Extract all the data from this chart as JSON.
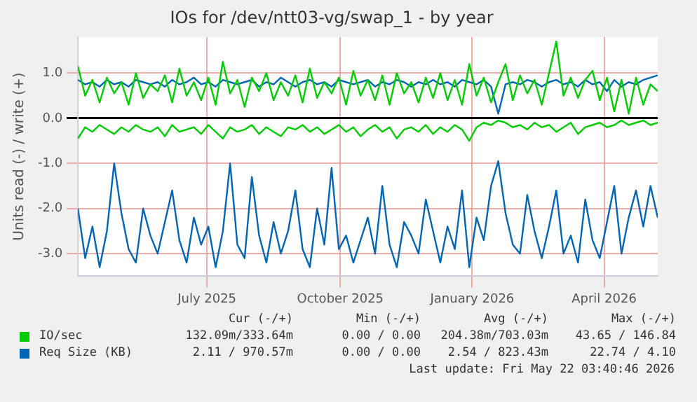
{
  "chart_data": {
    "type": "line",
    "title": "IOs for /dev/ntt03-vg/swap_1 - by year",
    "ylabel": "Units read (-) / write (+)",
    "x": [
      "2025-04-17",
      "2025-04-22",
      "2025-04-27",
      "2025-05-02",
      "2025-05-07",
      "2025-05-12",
      "2025-05-17",
      "2025-05-22",
      "2025-05-27",
      "2025-06-01",
      "2025-06-06",
      "2025-06-11",
      "2025-06-16",
      "2025-06-21",
      "2025-06-26",
      "2025-07-01",
      "2025-07-06",
      "2025-07-11",
      "2025-07-16",
      "2025-07-21",
      "2025-07-26",
      "2025-07-31",
      "2025-08-05",
      "2025-08-10",
      "2025-08-15",
      "2025-08-20",
      "2025-08-25",
      "2025-08-30",
      "2025-09-04",
      "2025-09-09",
      "2025-09-14",
      "2025-09-19",
      "2025-09-24",
      "2025-09-29",
      "2025-10-04",
      "2025-10-09",
      "2025-10-14",
      "2025-10-19",
      "2025-10-24",
      "2025-10-29",
      "2025-11-03",
      "2025-11-08",
      "2025-11-13",
      "2025-11-18",
      "2025-11-23",
      "2025-11-28",
      "2025-12-03",
      "2025-12-08",
      "2025-12-13",
      "2025-12-18",
      "2025-12-23",
      "2025-12-28",
      "2026-01-02",
      "2026-01-07",
      "2026-01-12",
      "2026-01-17",
      "2026-01-22",
      "2026-01-27",
      "2026-02-01",
      "2026-02-06",
      "2026-02-11",
      "2026-02-16",
      "2026-02-21",
      "2026-02-26",
      "2026-03-03",
      "2026-03-08",
      "2026-03-13",
      "2026-03-18",
      "2026-03-23",
      "2026-03-28",
      "2026-04-02",
      "2026-04-07",
      "2026-04-12",
      "2026-04-17",
      "2026-04-22",
      "2026-04-27",
      "2026-05-02",
      "2026-05-07",
      "2026-05-12",
      "2026-05-17",
      "2026-05-22"
    ],
    "series": [
      {
        "color": "#00cc00",
        "values": [
          -0.45,
          -0.2,
          -0.3,
          -0.15,
          -0.25,
          -0.35,
          -0.2,
          -0.3,
          -0.15,
          -0.25,
          -0.3,
          -0.2,
          -0.4,
          -0.15,
          -0.3,
          -0.25,
          -0.2,
          -0.35,
          -0.15,
          -0.3,
          -0.45,
          -0.2,
          -0.3,
          -0.25,
          -0.15,
          -0.35,
          -0.2,
          -0.3,
          -0.4,
          -0.2,
          -0.25,
          -0.15,
          -0.3,
          -0.2,
          -0.35,
          -0.25,
          -0.15,
          -0.3,
          -0.2,
          -0.4,
          -0.25,
          -0.15,
          -0.3,
          -0.2,
          -0.45,
          -0.25,
          -0.2,
          -0.3,
          -0.15,
          -0.35,
          -0.2,
          -0.3,
          -0.15,
          -0.25,
          -0.5,
          -0.2,
          -0.1,
          -0.15,
          -0.05,
          -0.1,
          -0.2,
          -0.15,
          -0.25,
          -0.1,
          -0.2,
          -0.15,
          -0.3,
          -0.2,
          -0.1,
          -0.35,
          -0.2,
          -0.15,
          -0.1,
          -0.2,
          -0.15,
          -0.05,
          -0.15,
          -0.1,
          -0.05,
          -0.15,
          -0.1
        ]
      },
      {
        "name": "IO/sec",
        "color": "#00cc00",
        "values": [
          1.15,
          0.5,
          0.85,
          0.35,
          0.9,
          0.55,
          0.8,
          0.3,
          1.0,
          0.45,
          0.75,
          0.6,
          0.95,
          0.35,
          1.1,
          0.5,
          0.8,
          0.4,
          0.9,
          0.3,
          1.25,
          0.55,
          0.85,
          0.25,
          0.9,
          0.6,
          1.0,
          0.4,
          0.8,
          0.5,
          0.95,
          0.35,
          1.1,
          0.45,
          0.8,
          0.55,
          0.9,
          0.3,
          1.05,
          0.5,
          0.85,
          0.4,
          0.95,
          0.3,
          1.0,
          0.55,
          0.8,
          0.35,
          0.9,
          0.45,
          1.0,
          0.4,
          0.85,
          0.3,
          1.2,
          0.5,
          0.9,
          0.35,
          0.8,
          1.2,
          0.4,
          0.95,
          0.55,
          0.85,
          0.3,
          1.0,
          1.7,
          0.5,
          0.9,
          0.45,
          0.85,
          1.05,
          0.4,
          0.9,
          0.15,
          0.85,
          0.1,
          0.9,
          0.3,
          0.75,
          0.6
        ]
      },
      {
        "color": "#0066b3",
        "values": [
          -2.0,
          -3.1,
          -2.4,
          -3.3,
          -2.5,
          -1.0,
          -2.1,
          -2.9,
          -3.2,
          -2.0,
          -2.6,
          -3.0,
          -2.3,
          -1.6,
          -2.7,
          -3.2,
          -2.2,
          -2.8,
          -2.4,
          -3.3,
          -2.5,
          -1.0,
          -2.8,
          -3.1,
          -1.3,
          -2.6,
          -3.2,
          -2.3,
          -3.0,
          -2.5,
          -1.6,
          -2.9,
          -3.3,
          -2.0,
          -2.8,
          -1.1,
          -2.9,
          -2.6,
          -3.2,
          -2.7,
          -2.2,
          -3.0,
          -1.5,
          -2.8,
          -3.3,
          -2.3,
          -2.6,
          -3.0,
          -1.8,
          -2.5,
          -3.2,
          -2.4,
          -2.9,
          -1.6,
          -3.3,
          -2.2,
          -2.7,
          -1.5,
          -0.95,
          -2.1,
          -2.8,
          -3.0,
          -1.7,
          -2.5,
          -3.1,
          -2.4,
          -1.6,
          -3.0,
          -2.6,
          -3.2,
          -1.8,
          -2.7,
          -3.1,
          -2.3,
          -1.5,
          -3.0,
          -2.2,
          -1.6,
          -2.4,
          -1.5,
          -2.2
        ]
      },
      {
        "name": "Req Size (KB)",
        "color": "#0066b3",
        "values": [
          0.85,
          0.75,
          0.8,
          0.7,
          0.85,
          0.75,
          0.8,
          0.7,
          0.85,
          0.8,
          0.75,
          0.8,
          0.7,
          0.85,
          0.75,
          0.8,
          0.9,
          0.75,
          0.8,
          0.7,
          0.85,
          0.8,
          0.75,
          0.8,
          0.85,
          0.7,
          0.8,
          0.75,
          0.9,
          0.8,
          0.7,
          0.8,
          0.85,
          0.75,
          0.8,
          0.7,
          0.85,
          0.8,
          0.75,
          0.8,
          0.85,
          0.7,
          0.8,
          0.75,
          0.85,
          0.8,
          0.7,
          0.8,
          0.75,
          0.85,
          0.75,
          0.8,
          0.7,
          0.85,
          0.8,
          0.75,
          0.85,
          0.7,
          0.1,
          0.75,
          0.8,
          0.75,
          0.85,
          0.8,
          0.7,
          0.8,
          0.85,
          0.75,
          0.8,
          0.7,
          0.85,
          0.75,
          0.8,
          0.6,
          0.85,
          0.7,
          0.8,
          0.75,
          0.85,
          0.9,
          0.95
        ]
      }
    ],
    "xlim": [
      "2025-04-17",
      "2026-05-22"
    ],
    "xticks": [
      {
        "value": "2025-07-15",
        "label": "July 2025"
      },
      {
        "value": "2025-10-15",
        "label": "October 2025"
      },
      {
        "value": "2026-01-14",
        "label": "January 2026"
      },
      {
        "value": "2026-04-15",
        "label": "April 2026"
      }
    ],
    "ylim": [
      -3.5,
      1.8
    ],
    "yticks": [
      {
        "value": -3,
        "label": "-3.0"
      },
      {
        "value": -2,
        "label": "-2.0"
      },
      {
        "value": -1,
        "label": "-1.0"
      },
      {
        "value": 0,
        "label": "0.0"
      },
      {
        "value": 1,
        "label": "1.0"
      }
    ],
    "grid": true,
    "legend": "bottom left",
    "marker": "none",
    "line_style": "solid",
    "annotations": [
      "Cur (-/+)",
      "Min (-/+)",
      "Avg (-/+)",
      "Max (-/+)",
      "132.09m/333.64m",
      "0.00 / 0.00",
      "204.38m/703.03m",
      "43.65 / 146.84",
      "2.11 / 970.57m",
      "0.00 / 0.00",
      "2.54 / 823.43m",
      "22.74 / 4.10",
      "Last update: Fri May 22 03:40:46 2026"
    ]
  }
}
